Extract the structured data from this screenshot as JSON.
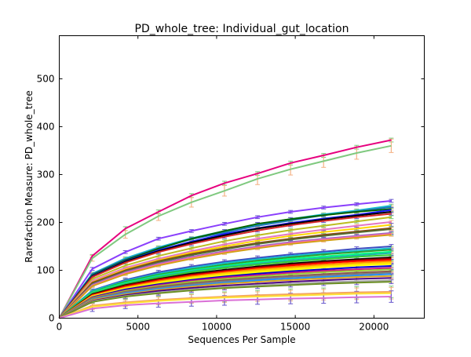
{
  "chart_data": {
    "type": "line",
    "title": "PD_whole_tree: Individual_gut_location",
    "xlabel": "Sequences Per Sample",
    "ylabel": "Rarefaction Measure: PD_whole_tree",
    "xlim": [
      0,
      23200
    ],
    "ylim": [
      0,
      590
    ],
    "x_ticks": [
      0,
      5000,
      10000,
      15000,
      20000
    ],
    "y_ticks": [
      0,
      100,
      200,
      300,
      400,
      500
    ],
    "x_tick_labels": [
      "0",
      "5000",
      "10000",
      "15000",
      "20000"
    ],
    "y_tick_labels": [
      "0",
      "100",
      "200",
      "300",
      "400",
      "500"
    ],
    "grid": false,
    "legend": "none",
    "x": [
      0,
      2100,
      4200,
      6300,
      8400,
      10500,
      12600,
      14700,
      16800,
      18900,
      21100
    ],
    "series": [
      {
        "color": "#e6007e",
        "values": [
          0,
          130,
          187,
          222,
          256,
          282,
          302,
          324,
          340,
          357,
          372
        ],
        "err": [
          0,
          3,
          4,
          4,
          4,
          4,
          4,
          4,
          4,
          4,
          4
        ]
      },
      {
        "color": "#7fc97f",
        "values": [
          0,
          125,
          175,
          213,
          242,
          266,
          291,
          311,
          328,
          345,
          360
        ],
        "err": [
          0,
          6,
          8,
          9,
          10,
          11,
          12,
          12,
          13,
          13,
          14
        ]
      },
      {
        "color": "#8a3ffc",
        "values": [
          0,
          103,
          138,
          166,
          182,
          197,
          211,
          222,
          231,
          238,
          245
        ],
        "err": [
          0,
          3,
          3,
          3,
          3,
          3,
          3,
          3,
          3,
          3,
          3
        ]
      },
      {
        "color": "#17becf",
        "values": [
          0,
          93,
          125,
          148,
          167,
          182,
          196,
          207,
          217,
          225,
          235
        ],
        "err": [
          0,
          3,
          3,
          3,
          3,
          3,
          3,
          3,
          3,
          3,
          3
        ]
      },
      {
        "color": "#1f77b4",
        "values": [
          0,
          92,
          123,
          146,
          165,
          179,
          193,
          204,
          215,
          223,
          232
        ],
        "err": [
          0,
          3,
          3,
          3,
          3,
          3,
          3,
          3,
          3,
          3,
          3
        ]
      },
      {
        "color": "#006400",
        "values": [
          0,
          90,
          121,
          145,
          166,
          182,
          197,
          207,
          215,
          222,
          228
        ],
        "err": [
          0,
          3,
          3,
          3,
          3,
          3,
          3,
          3,
          3,
          3,
          3
        ]
      },
      {
        "color": "#1a1aff",
        "values": [
          0,
          88,
          119,
          142,
          160,
          176,
          188,
          199,
          208,
          216,
          226
        ],
        "err": [
          0,
          3,
          3,
          3,
          3,
          3,
          3,
          3,
          3,
          3,
          3
        ]
      },
      {
        "color": "#000000",
        "values": [
          0,
          87,
          118,
          140,
          158,
          173,
          187,
          197,
          206,
          214,
          222
        ],
        "err": [
          0,
          3,
          3,
          3,
          3,
          3,
          3,
          3,
          3,
          3,
          3
        ]
      },
      {
        "color": "#d62728",
        "values": [
          0,
          86,
          116,
          138,
          155,
          170,
          183,
          194,
          203,
          211,
          218
        ],
        "err": [
          0,
          3,
          3,
          3,
          3,
          3,
          3,
          3,
          3,
          3,
          3
        ]
      },
      {
        "color": "#bcbd22",
        "values": [
          0,
          82,
          110,
          130,
          146,
          161,
          173,
          184,
          193,
          202,
          211
        ],
        "err": [
          0,
          3,
          3,
          3,
          3,
          3,
          3,
          3,
          3,
          3,
          3
        ]
      },
      {
        "color": "#e377c2",
        "values": [
          0,
          78,
          105,
          124,
          140,
          154,
          166,
          176,
          185,
          193,
          201
        ],
        "err": [
          0,
          3,
          3,
          3,
          3,
          3,
          3,
          3,
          3,
          3,
          3
        ]
      },
      {
        "color": "#ffd700",
        "values": [
          0,
          75,
          102,
          121,
          137,
          150,
          162,
          172,
          180,
          187,
          195
        ],
        "err": [
          0,
          3,
          3,
          3,
          3,
          3,
          3,
          3,
          3,
          3,
          3
        ]
      },
      {
        "color": "#8b4513",
        "values": [
          0,
          74,
          100,
          119,
          134,
          146,
          157,
          166,
          174,
          181,
          188
        ],
        "err": [
          0,
          3,
          3,
          3,
          3,
          3,
          3,
          3,
          3,
          3,
          3
        ]
      },
      {
        "color": "#556b2f",
        "values": [
          0,
          72,
          98,
          117,
          132,
          144,
          155,
          164,
          172,
          179,
          186
        ],
        "err": [
          0,
          3,
          3,
          3,
          3,
          3,
          3,
          3,
          3,
          3,
          3
        ]
      },
      {
        "color": "#9467bd",
        "values": [
          0,
          70,
          96,
          114,
          128,
          140,
          150,
          159,
          166,
          172,
          178
        ],
        "err": [
          0,
          3,
          3,
          3,
          3,
          3,
          3,
          3,
          3,
          3,
          3
        ]
      },
      {
        "color": "#ff69b4",
        "values": [
          0,
          68,
          94,
          112,
          126,
          138,
          148,
          157,
          164,
          170,
          176
        ],
        "err": [
          0,
          3,
          3,
          3,
          3,
          3,
          3,
          3,
          3,
          3,
          3
        ]
      },
      {
        "color": "#d4a017",
        "values": [
          0,
          67,
          92,
          110,
          124,
          136,
          146,
          155,
          162,
          168,
          174
        ],
        "err": [
          0,
          3,
          3,
          3,
          3,
          3,
          3,
          3,
          3,
          3,
          3
        ]
      },
      {
        "color": "#3b4cc0",
        "values": [
          0,
          58,
          80,
          96,
          108,
          118,
          126,
          133,
          139,
          145,
          150
        ],
        "err": [
          0,
          3,
          4,
          4,
          4,
          4,
          4,
          4,
          4,
          4,
          4
        ]
      },
      {
        "color": "#17becf",
        "values": [
          0,
          57,
          78,
          93,
          105,
          115,
          123,
          130,
          136,
          141,
          146
        ],
        "err": [
          0,
          3,
          4,
          4,
          4,
          4,
          4,
          4,
          4,
          4,
          4
        ]
      },
      {
        "color": "#2ca02c",
        "values": [
          0,
          55,
          76,
          91,
          102,
          112,
          120,
          127,
          133,
          138,
          143
        ],
        "err": [
          0,
          3,
          4,
          4,
          4,
          4,
          4,
          4,
          4,
          4,
          4
        ]
      },
      {
        "color": "#00ff7f",
        "values": [
          0,
          54,
          74,
          89,
          100,
          109,
          117,
          124,
          129,
          134,
          139
        ],
        "err": [
          0,
          3,
          4,
          4,
          4,
          4,
          4,
          4,
          4,
          4,
          4
        ]
      },
      {
        "color": "#20b2aa",
        "values": [
          0,
          53,
          72,
          87,
          98,
          107,
          114,
          121,
          126,
          131,
          136
        ],
        "err": [
          0,
          3,
          4,
          4,
          4,
          4,
          4,
          4,
          4,
          4,
          4
        ]
      },
      {
        "color": "#32cd32",
        "values": [
          0,
          52,
          71,
          85,
          96,
          105,
          112,
          118,
          123,
          128,
          132
        ],
        "err": [
          0,
          3,
          4,
          4,
          4,
          4,
          4,
          4,
          4,
          4,
          4
        ]
      },
      {
        "color": "#000000",
        "values": [
          0,
          50,
          69,
          82,
          93,
          101,
          108,
          114,
          119,
          123,
          127
        ],
        "err": [
          0,
          3,
          4,
          4,
          4,
          4,
          4,
          4,
          4,
          4,
          4
        ]
      },
      {
        "color": "#8b0000",
        "values": [
          0,
          49,
          68,
          81,
          91,
          99,
          106,
          112,
          117,
          121,
          125
        ],
        "err": [
          0,
          3,
          4,
          4,
          4,
          4,
          4,
          4,
          4,
          4,
          4
        ]
      },
      {
        "color": "#ff0000",
        "values": [
          0,
          48,
          66,
          79,
          89,
          97,
          104,
          110,
          115,
          119,
          122
        ],
        "err": [
          0,
          3,
          4,
          4,
          4,
          4,
          4,
          4,
          4,
          4,
          4
        ]
      },
      {
        "color": "#ff8c00",
        "values": [
          0,
          47,
          64,
          77,
          87,
          95,
          102,
          107,
          112,
          116,
          119
        ],
        "err": [
          0,
          3,
          4,
          4,
          4,
          4,
          4,
          4,
          4,
          4,
          4
        ]
      },
      {
        "color": "#ffd700",
        "values": [
          0,
          46,
          63,
          75,
          85,
          93,
          99,
          104,
          109,
          113,
          116
        ],
        "err": [
          0,
          3,
          4,
          4,
          4,
          4,
          4,
          4,
          4,
          4,
          4
        ]
      },
      {
        "color": "#ffff00",
        "values": [
          0,
          45,
          61,
          73,
          83,
          90,
          96,
          101,
          106,
          110,
          113
        ],
        "err": [
          0,
          3,
          4,
          4,
          4,
          4,
          4,
          4,
          4,
          4,
          4
        ]
      },
      {
        "color": "#0000cd",
        "values": [
          0,
          44,
          60,
          71,
          80,
          87,
          93,
          98,
          102,
          106,
          109
        ],
        "err": [
          0,
          3,
          4,
          4,
          4,
          4,
          4,
          4,
          4,
          4,
          4
        ]
      },
      {
        "color": "#c71585",
        "values": [
          0,
          43,
          58,
          69,
          78,
          85,
          90,
          95,
          99,
          102,
          105
        ],
        "err": [
          0,
          3,
          4,
          4,
          4,
          4,
          4,
          4,
          4,
          4,
          4
        ]
      },
      {
        "color": "#9acd32",
        "values": [
          0,
          42,
          57,
          67,
          76,
          82,
          87,
          92,
          96,
          99,
          102
        ],
        "err": [
          0,
          3,
          4,
          4,
          4,
          4,
          4,
          4,
          4,
          4,
          4
        ]
      },
      {
        "color": "#8c564b",
        "values": [
          0,
          41,
          55,
          65,
          73,
          79,
          84,
          88,
          92,
          95,
          98
        ],
        "err": [
          0,
          3,
          4,
          4,
          4,
          4,
          4,
          4,
          4,
          4,
          4
        ]
      },
      {
        "color": "#7f7f7f",
        "values": [
          0,
          40,
          54,
          63,
          71,
          77,
          82,
          86,
          89,
          92,
          95
        ],
        "err": [
          0,
          3,
          4,
          4,
          4,
          4,
          4,
          4,
          4,
          4,
          4
        ]
      },
      {
        "color": "#1e90ff",
        "values": [
          0,
          39,
          52,
          61,
          68,
          74,
          79,
          83,
          86,
          89,
          92
        ],
        "err": [
          0,
          3,
          4,
          4,
          4,
          4,
          4,
          4,
          4,
          4,
          4
        ]
      },
      {
        "color": "#daa520",
        "values": [
          0,
          38,
          50,
          59,
          66,
          72,
          76,
          80,
          83,
          86,
          88
        ],
        "err": [
          0,
          3,
          4,
          4,
          4,
          4,
          4,
          4,
          4,
          4,
          4
        ]
      },
      {
        "color": "#4b0082",
        "values": [
          0,
          36,
          48,
          57,
          63,
          68,
          72,
          76,
          79,
          82,
          84
        ],
        "err": [
          0,
          3,
          4,
          4,
          4,
          4,
          4,
          4,
          4,
          4,
          4
        ]
      },
      {
        "color": "#a9a9a9",
        "values": [
          0,
          35,
          46,
          54,
          60,
          65,
          69,
          72,
          75,
          77,
          79
        ],
        "err": [
          0,
          3,
          4,
          4,
          4,
          4,
          4,
          4,
          4,
          4,
          4
        ]
      },
      {
        "color": "#6b8e23",
        "values": [
          0,
          34,
          45,
          52,
          58,
          63,
          66,
          69,
          72,
          74,
          76
        ],
        "err": [
          0,
          3,
          4,
          4,
          4,
          4,
          4,
          4,
          4,
          4,
          4
        ]
      },
      {
        "color": "#f4a460",
        "values": [
          0,
          26,
          33,
          38,
          42,
          45,
          48,
          50,
          52,
          54,
          55
        ],
        "err": [
          0,
          6,
          7,
          8,
          9,
          10,
          10,
          11,
          11,
          12,
          12
        ]
      },
      {
        "color": "#ffe135",
        "values": [
          0,
          24,
          31,
          36,
          40,
          43,
          45,
          47,
          49,
          51,
          52
        ],
        "err": [
          0,
          6,
          7,
          8,
          9,
          10,
          10,
          11,
          11,
          12,
          12
        ]
      },
      {
        "color": "#da70d6",
        "values": [
          0,
          20,
          27,
          31,
          34,
          37,
          39,
          41,
          42,
          44,
          45
        ],
        "err": [
          0,
          6,
          7,
          8,
          9,
          10,
          10,
          11,
          11,
          12,
          12
        ]
      }
    ],
    "colors": {
      "axes": "#000000",
      "background": "#ffffff",
      "error_bars": [
        "#7fc97f",
        "#f4b183",
        "#6a5acd"
      ]
    }
  }
}
